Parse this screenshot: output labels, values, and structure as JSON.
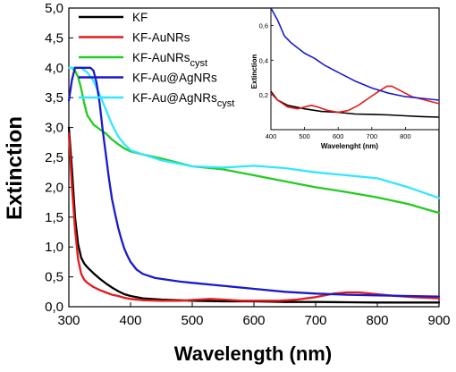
{
  "chart_data": [
    {
      "type": "line",
      "xlabel": "Wavelength (nm)",
      "ylabel": "Extinction",
      "xlim": [
        300,
        900
      ],
      "ylim": [
        0,
        5
      ],
      "xticks": [
        "300",
        "400",
        "500",
        "600",
        "700",
        "800",
        "900"
      ],
      "yticks": [
        "0,0",
        "0,5",
        "1,0",
        "1,5",
        "2,0",
        "2,5",
        "3,0",
        "3,5",
        "4,0",
        "4,5",
        "5,0"
      ],
      "legend_position": "top-left",
      "series": [
        {
          "name": "KF",
          "legend_main": "KF",
          "legend_sub": "",
          "color": "#000000",
          "points": [
            [
              300,
              3.0
            ],
            [
              305,
              2.3
            ],
            [
              310,
              1.5
            ],
            [
              315,
              1.05
            ],
            [
              320,
              0.82
            ],
            [
              325,
              0.72
            ],
            [
              330,
              0.66
            ],
            [
              340,
              0.56
            ],
            [
              350,
              0.47
            ],
            [
              360,
              0.39
            ],
            [
              370,
              0.32
            ],
            [
              380,
              0.26
            ],
            [
              390,
              0.21
            ],
            [
              400,
              0.18
            ],
            [
              420,
              0.14
            ],
            [
              450,
              0.12
            ],
            [
              500,
              0.1
            ],
            [
              550,
              0.09
            ],
            [
              600,
              0.09
            ],
            [
              650,
              0.08
            ],
            [
              700,
              0.08
            ],
            [
              750,
              0.075
            ],
            [
              800,
              0.07
            ],
            [
              850,
              0.07
            ],
            [
              900,
              0.07
            ]
          ]
        },
        {
          "name": "KF-AuNRs",
          "legend_main": "KF-AuNRs",
          "legend_sub": "",
          "color": "#e41a1c",
          "points": [
            [
              300,
              2.9
            ],
            [
              305,
              2.0
            ],
            [
              310,
              1.3
            ],
            [
              315,
              0.8
            ],
            [
              320,
              0.55
            ],
            [
              325,
              0.45
            ],
            [
              330,
              0.4
            ],
            [
              340,
              0.33
            ],
            [
              350,
              0.28
            ],
            [
              360,
              0.24
            ],
            [
              370,
              0.2
            ],
            [
              380,
              0.18
            ],
            [
              390,
              0.15
            ],
            [
              400,
              0.13
            ],
            [
              420,
              0.11
            ],
            [
              450,
              0.1
            ],
            [
              480,
              0.1
            ],
            [
              510,
              0.12
            ],
            [
              530,
              0.13
            ],
            [
              550,
              0.12
            ],
            [
              580,
              0.1
            ],
            [
              610,
              0.1
            ],
            [
              640,
              0.1
            ],
            [
              670,
              0.12
            ],
            [
              700,
              0.16
            ],
            [
              730,
              0.22
            ],
            [
              750,
              0.24
            ],
            [
              770,
              0.24
            ],
            [
              800,
              0.21
            ],
            [
              830,
              0.18
            ],
            [
              860,
              0.16
            ],
            [
              900,
              0.14
            ]
          ]
        },
        {
          "name": "KF-AuNRs cyst",
          "legend_main": "KF-AuNRs",
          "legend_sub": "cyst",
          "color": "#22cc22",
          "points": [
            [
              300,
              4.0
            ],
            [
              305,
              4.0
            ],
            [
              310,
              3.95
            ],
            [
              315,
              3.85
            ],
            [
              320,
              3.65
            ],
            [
              325,
              3.4
            ],
            [
              330,
              3.2
            ],
            [
              340,
              3.05
            ],
            [
              350,
              2.97
            ],
            [
              360,
              2.9
            ],
            [
              370,
              2.8
            ],
            [
              380,
              2.72
            ],
            [
              390,
              2.65
            ],
            [
              400,
              2.6
            ],
            [
              420,
              2.55
            ],
            [
              450,
              2.48
            ],
            [
              500,
              2.35
            ],
            [
              550,
              2.3
            ],
            [
              600,
              2.2
            ],
            [
              650,
              2.1
            ],
            [
              700,
              2.0
            ],
            [
              750,
              1.92
            ],
            [
              800,
              1.83
            ],
            [
              850,
              1.72
            ],
            [
              900,
              1.57
            ]
          ]
        },
        {
          "name": "KF-Au@AgNRs",
          "legend_main": "KF-Au@AgNRs",
          "legend_sub": "",
          "color": "#1a1acc",
          "points": [
            [
              300,
              3.45
            ],
            [
              305,
              3.8
            ],
            [
              310,
              4.0
            ],
            [
              320,
              4.0
            ],
            [
              330,
              4.0
            ],
            [
              335,
              4.0
            ],
            [
              340,
              3.95
            ],
            [
              345,
              3.75
            ],
            [
              350,
              3.4
            ],
            [
              355,
              2.95
            ],
            [
              360,
              2.55
            ],
            [
              365,
              2.15
            ],
            [
              370,
              1.8
            ],
            [
              375,
              1.55
            ],
            [
              380,
              1.32
            ],
            [
              385,
              1.13
            ],
            [
              390,
              0.97
            ],
            [
              395,
              0.85
            ],
            [
              400,
              0.75
            ],
            [
              410,
              0.62
            ],
            [
              420,
              0.55
            ],
            [
              440,
              0.48
            ],
            [
              460,
              0.45
            ],
            [
              480,
              0.42
            ],
            [
              500,
              0.4
            ],
            [
              550,
              0.35
            ],
            [
              600,
              0.3
            ],
            [
              650,
              0.25
            ],
            [
              700,
              0.22
            ],
            [
              750,
              0.2
            ],
            [
              800,
              0.19
            ],
            [
              850,
              0.18
            ],
            [
              900,
              0.17
            ]
          ]
        },
        {
          "name": "KF-Au@AgNRs cyst",
          "legend_main": "KF-Au@AgNRs",
          "legend_sub": "cyst",
          "color": "#33e6ff",
          "points": [
            [
              300,
              4.0
            ],
            [
              320,
              4.0
            ],
            [
              330,
              3.92
            ],
            [
              340,
              3.78
            ],
            [
              350,
              3.55
            ],
            [
              360,
              3.3
            ],
            [
              370,
              3.05
            ],
            [
              380,
              2.85
            ],
            [
              390,
              2.72
            ],
            [
              400,
              2.62
            ],
            [
              420,
              2.55
            ],
            [
              450,
              2.45
            ],
            [
              500,
              2.35
            ],
            [
              550,
              2.33
            ],
            [
              600,
              2.36
            ],
            [
              650,
              2.32
            ],
            [
              700,
              2.25
            ],
            [
              750,
              2.2
            ],
            [
              800,
              2.15
            ],
            [
              850,
              2.0
            ],
            [
              900,
              1.82
            ]
          ]
        }
      ]
    },
    {
      "type": "line",
      "inset": true,
      "xlabel": "Wavelenght (nm)",
      "ylabel": "Extinction",
      "xlim": [
        400,
        900
      ],
      "ylim": [
        0,
        0.7
      ],
      "xticks": [
        "400",
        "500",
        "600",
        "700",
        "800"
      ],
      "yticks": [
        "0,2",
        "0,4",
        "0,6"
      ],
      "series": [
        {
          "name": "KF",
          "color": "#000000",
          "points": [
            [
              400,
              0.22
            ],
            [
              420,
              0.17
            ],
            [
              450,
              0.14
            ],
            [
              500,
              0.12
            ],
            [
              550,
              0.105
            ],
            [
              600,
              0.1
            ],
            [
              650,
              0.09
            ],
            [
              700,
              0.088
            ],
            [
              750,
              0.085
            ],
            [
              800,
              0.08
            ],
            [
              850,
              0.075
            ],
            [
              900,
              0.072
            ]
          ]
        },
        {
          "name": "KF-AuNRs",
          "color": "#e41a1c",
          "points": [
            [
              400,
              0.21
            ],
            [
              420,
              0.17
            ],
            [
              450,
              0.13
            ],
            [
              480,
              0.12
            ],
            [
              500,
              0.13
            ],
            [
              520,
              0.14
            ],
            [
              540,
              0.13
            ],
            [
              570,
              0.11
            ],
            [
              600,
              0.1
            ],
            [
              630,
              0.11
            ],
            [
              660,
              0.14
            ],
            [
              690,
              0.18
            ],
            [
              720,
              0.22
            ],
            [
              745,
              0.25
            ],
            [
              760,
              0.25
            ],
            [
              790,
              0.22
            ],
            [
              820,
              0.19
            ],
            [
              860,
              0.17
            ],
            [
              900,
              0.15
            ]
          ]
        },
        {
          "name": "KF-Au@AgNRs",
          "color": "#1a1acc",
          "points": [
            [
              400,
              0.7
            ],
            [
              420,
              0.63
            ],
            [
              440,
              0.54
            ],
            [
              460,
              0.5
            ],
            [
              480,
              0.47
            ],
            [
              500,
              0.44
            ],
            [
              530,
              0.41
            ],
            [
              560,
              0.37
            ],
            [
              600,
              0.33
            ],
            [
              650,
              0.28
            ],
            [
              700,
              0.24
            ],
            [
              750,
              0.21
            ],
            [
              800,
              0.19
            ],
            [
              850,
              0.18
            ],
            [
              900,
              0.17
            ]
          ]
        }
      ]
    }
  ]
}
